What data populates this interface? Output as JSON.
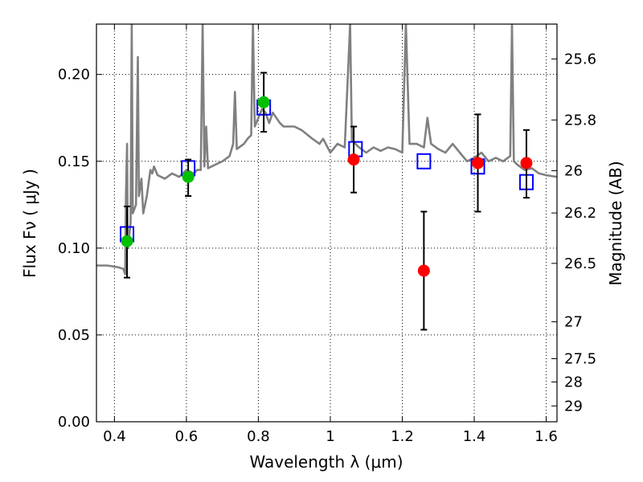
{
  "chart_data": {
    "type": "scatter",
    "title": "",
    "xlabel": "Wavelength  λ (μm)",
    "ylabel": "Flux  Fν  ( μJy )",
    "ylabel_right": "Magnitude (AB)",
    "xlim": [
      0.35,
      1.63
    ],
    "ylim": [
      0.0,
      0.229
    ],
    "grid": true,
    "x_ticks": [
      0.4,
      0.6,
      0.8,
      1.0,
      1.2,
      1.4,
      1.6
    ],
    "x_tick_labels": [
      "0.4",
      "0.6",
      "0.8",
      "1",
      "1.2",
      "1.4",
      "1.6"
    ],
    "y_ticks": [
      0.0,
      0.05,
      0.1,
      0.15,
      0.2
    ],
    "y_tick_labels": [
      "0.00",
      "0.05",
      "0.10",
      "0.15",
      "0.20"
    ],
    "right_ticks": [
      {
        "label": "25.6",
        "mag": 25.6
      },
      {
        "label": "25.8",
        "mag": 25.8
      },
      {
        "label": "26",
        "mag": 26.0
      },
      {
        "label": "26.2",
        "mag": 26.2
      },
      {
        "label": "26.5",
        "mag": 26.5
      },
      {
        "label": "27",
        "mag": 27.0
      },
      {
        "label": "27.5",
        "mag": 27.5
      },
      {
        "label": "28",
        "mag": 28.0
      },
      {
        "label": "29",
        "mag": 29.0
      }
    ],
    "colors": {
      "model": "#808080",
      "model_photometry": "#0000ff",
      "optical_detections": "#00c000",
      "nir_detections": "#ff0000",
      "errorbar": "#000000"
    },
    "series": [
      {
        "kind": "line",
        "points": [
          [
            0.35,
            0.09
          ],
          [
            0.38,
            0.09
          ],
          [
            0.41,
            0.089
          ],
          [
            0.425,
            0.088
          ],
          [
            0.43,
            0.085
          ],
          [
            0.432,
            0.13
          ],
          [
            0.435,
            0.16
          ],
          [
            0.437,
            0.1
          ],
          [
            0.44,
            0.105
          ],
          [
            0.445,
            0.115
          ],
          [
            0.448,
            0.229
          ],
          [
            0.451,
            0.12
          ],
          [
            0.46,
            0.125
          ],
          [
            0.465,
            0.21
          ],
          [
            0.468,
            0.13
          ],
          [
            0.475,
            0.14
          ],
          [
            0.48,
            0.12
          ],
          [
            0.49,
            0.13
          ],
          [
            0.5,
            0.145
          ],
          [
            0.505,
            0.143
          ],
          [
            0.51,
            0.147
          ],
          [
            0.52,
            0.142
          ],
          [
            0.54,
            0.14
          ],
          [
            0.56,
            0.143
          ],
          [
            0.58,
            0.141
          ],
          [
            0.59,
            0.143
          ],
          [
            0.6,
            0.145
          ],
          [
            0.62,
            0.143
          ],
          [
            0.63,
            0.145
          ],
          [
            0.64,
            0.145
          ],
          [
            0.645,
            0.229
          ],
          [
            0.65,
            0.147
          ],
          [
            0.655,
            0.17
          ],
          [
            0.66,
            0.146
          ],
          [
            0.68,
            0.148
          ],
          [
            0.7,
            0.15
          ],
          [
            0.72,
            0.153
          ],
          [
            0.73,
            0.16
          ],
          [
            0.735,
            0.19
          ],
          [
            0.74,
            0.157
          ],
          [
            0.76,
            0.16
          ],
          [
            0.77,
            0.163
          ],
          [
            0.78,
            0.165
          ],
          [
            0.785,
            0.229
          ],
          [
            0.79,
            0.17
          ],
          [
            0.8,
            0.175
          ],
          [
            0.81,
            0.18
          ],
          [
            0.82,
            0.178
          ],
          [
            0.83,
            0.172
          ],
          [
            0.84,
            0.178
          ],
          [
            0.85,
            0.175
          ],
          [
            0.86,
            0.172
          ],
          [
            0.87,
            0.17
          ],
          [
            0.9,
            0.17
          ],
          [
            0.92,
            0.168
          ],
          [
            0.95,
            0.163
          ],
          [
            0.97,
            0.16
          ],
          [
            0.98,
            0.163
          ],
          [
            1.0,
            0.155
          ],
          [
            1.02,
            0.16
          ],
          [
            1.04,
            0.158
          ],
          [
            1.055,
            0.229
          ],
          [
            1.06,
            0.162
          ],
          [
            1.08,
            0.158
          ],
          [
            1.1,
            0.155
          ],
          [
            1.12,
            0.158
          ],
          [
            1.14,
            0.156
          ],
          [
            1.16,
            0.158
          ],
          [
            1.18,
            0.157
          ],
          [
            1.2,
            0.155
          ],
          [
            1.21,
            0.229
          ],
          [
            1.22,
            0.16
          ],
          [
            1.24,
            0.16
          ],
          [
            1.26,
            0.158
          ],
          [
            1.27,
            0.175
          ],
          [
            1.28,
            0.16
          ],
          [
            1.3,
            0.157
          ],
          [
            1.32,
            0.155
          ],
          [
            1.34,
            0.16
          ],
          [
            1.36,
            0.155
          ],
          [
            1.38,
            0.15
          ],
          [
            1.4,
            0.152
          ],
          [
            1.42,
            0.155
          ],
          [
            1.44,
            0.15
          ],
          [
            1.46,
            0.152
          ],
          [
            1.48,
            0.15
          ],
          [
            1.5,
            0.153
          ],
          [
            1.505,
            0.229
          ],
          [
            1.51,
            0.15
          ],
          [
            1.52,
            0.148
          ],
          [
            1.54,
            0.145
          ],
          [
            1.56,
            0.146
          ],
          [
            1.58,
            0.143
          ],
          [
            1.6,
            0.142
          ],
          [
            1.63,
            0.141
          ]
        ]
      },
      {
        "kind": "open-square",
        "points": [
          [
            0.435,
            0.108
          ],
          [
            0.605,
            0.146
          ],
          [
            0.815,
            0.181
          ],
          [
            1.07,
            0.157
          ],
          [
            1.26,
            0.15
          ],
          [
            1.41,
            0.147
          ],
          [
            1.545,
            0.138
          ]
        ]
      },
      {
        "kind": "filled-circle-errorbar",
        "color_key": "optical_detections",
        "points": [
          {
            "x": 0.435,
            "y": 0.104,
            "ylo": 0.083,
            "yhi": 0.124
          },
          {
            "x": 0.605,
            "y": 0.141,
            "ylo": 0.13,
            "yhi": 0.151
          },
          {
            "x": 0.815,
            "y": 0.184,
            "ylo": 0.167,
            "yhi": 0.201
          }
        ]
      },
      {
        "kind": "filled-circle-errorbar",
        "color_key": "nir_detections",
        "points": [
          {
            "x": 1.065,
            "y": 0.151,
            "ylo": 0.132,
            "yhi": 0.17
          },
          {
            "x": 1.26,
            "y": 0.087,
            "ylo": 0.053,
            "yhi": 0.121
          },
          {
            "x": 1.41,
            "y": 0.149,
            "ylo": 0.121,
            "yhi": 0.177
          },
          {
            "x": 1.545,
            "y": 0.149,
            "ylo": 0.129,
            "yhi": 0.168
          }
        ]
      }
    ]
  }
}
